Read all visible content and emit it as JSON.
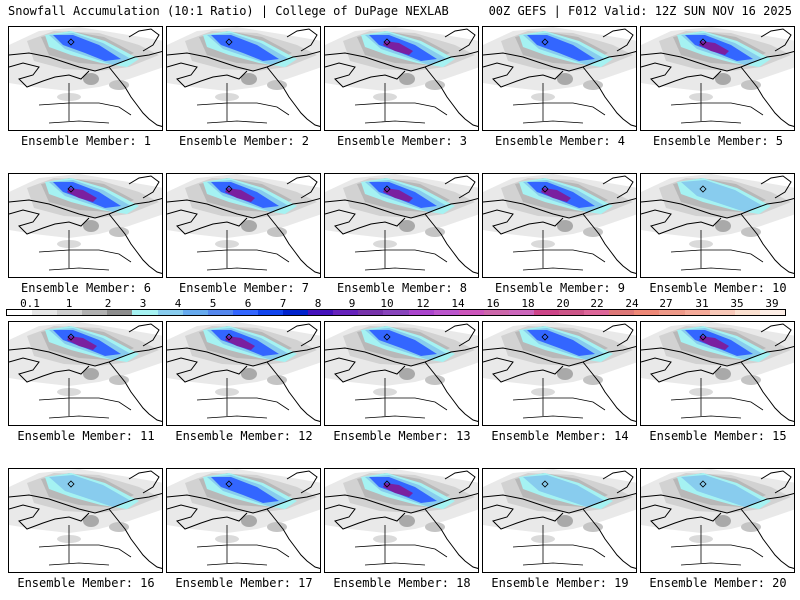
{
  "header": {
    "title_left": "Snowfall Accumulation (10:1 Ratio) | College of DuPage NEXLAB",
    "title_right": "00Z GEFS | F012 Valid: 12Z SUN NOV 16 2025"
  },
  "legend": {
    "labels": [
      "0.1",
      "1",
      "2",
      "3",
      "4",
      "5",
      "6",
      "7",
      "8",
      "9",
      "10",
      "12",
      "14",
      "16",
      "18",
      "20",
      "22",
      "24",
      "27",
      "31",
      "35",
      "39"
    ],
    "colors": [
      "#ffffff",
      "#e6e6e6",
      "#cfcfcf",
      "#b0b0b0",
      "#8c8c8c",
      "#a5f2f2",
      "#88ccee",
      "#66aaee",
      "#5588ee",
      "#3366ff",
      "#1144ee",
      "#0022cc",
      "#4411bb",
      "#6622bb",
      "#7733aa",
      "#8844bb",
      "#aa44cc",
      "#bb55cc",
      "#cc55bb",
      "#cc66aa",
      "#cc66bb",
      "#cc4488",
      "#cc5588",
      "#dd6699",
      "#dd7777",
      "#ee8877",
      "#ee9988",
      "#f5aa99",
      "#f8c8b8",
      "#fbe0d0",
      "#fdeee6"
    ]
  },
  "panels": [
    {
      "label": "Ensemble Member: 1",
      "intensity": 2
    },
    {
      "label": "Ensemble Member: 2",
      "intensity": 2
    },
    {
      "label": "Ensemble Member: 3",
      "intensity": 3
    },
    {
      "label": "Ensemble Member: 4",
      "intensity": 2
    },
    {
      "label": "Ensemble Member: 5",
      "intensity": 3
    },
    {
      "label": "Ensemble Member: 6",
      "intensity": 3
    },
    {
      "label": "Ensemble Member: 7",
      "intensity": 3
    },
    {
      "label": "Ensemble Member: 8",
      "intensity": 3
    },
    {
      "label": "Ensemble Member: 9",
      "intensity": 3
    },
    {
      "label": "Ensemble Member: 10",
      "intensity": 1
    },
    {
      "label": "Ensemble Member: 11",
      "intensity": 3
    },
    {
      "label": "Ensemble Member: 12",
      "intensity": 3
    },
    {
      "label": "Ensemble Member: 13",
      "intensity": 2
    },
    {
      "label": "Ensemble Member: 14",
      "intensity": 2
    },
    {
      "label": "Ensemble Member: 15",
      "intensity": 3
    },
    {
      "label": "Ensemble Member: 16",
      "intensity": 1
    },
    {
      "label": "Ensemble Member: 17",
      "intensity": 2
    },
    {
      "label": "Ensemble Member: 18",
      "intensity": 3
    },
    {
      "label": "Ensemble Member: 19",
      "intensity": 1
    },
    {
      "label": "Ensemble Member: 20",
      "intensity": 1
    }
  ]
}
